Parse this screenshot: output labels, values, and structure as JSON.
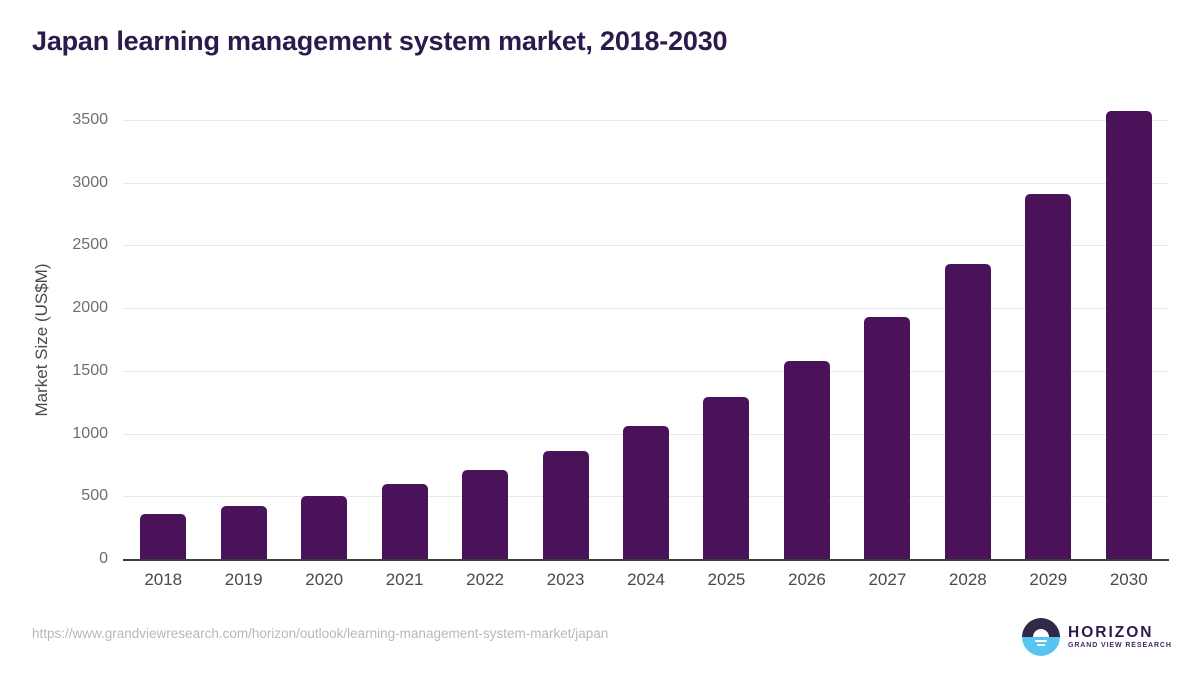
{
  "header": {
    "title": "Japan learning management system market, 2018-2030"
  },
  "chart_data": {
    "type": "bar",
    "title": "Japan learning management system market, 2018-2030",
    "categories": [
      "2018",
      "2019",
      "2020",
      "2021",
      "2022",
      "2023",
      "2024",
      "2025",
      "2026",
      "2027",
      "2028",
      "2029",
      "2030"
    ],
    "values": [
      355,
      420,
      500,
      600,
      712,
      865,
      1060,
      1295,
      1580,
      1930,
      2355,
      2910,
      3570
    ],
    "xlabel": "",
    "ylabel": "Market Size (US$M)",
    "ylim": [
      0,
      3570
    ],
    "yticks": [
      0,
      500,
      1000,
      1500,
      2000,
      2500,
      3000,
      3500
    ],
    "grid": "horizontal-only",
    "legend": "none",
    "bar_color": "#4a1259"
  },
  "footer": {
    "source_url": "https://www.grandviewresearch.com/horizon/outlook/learning-management-system-market/japan",
    "logo": {
      "name": "HORIZON",
      "tagline": "GRAND VIEW RESEARCH"
    }
  },
  "colors": {
    "bar": "#4a1259",
    "title_text": "#2c1a4d",
    "axis_label": "#4a4a4a",
    "tick_label": "#6e6e6e",
    "gridline": "#e8e8e8",
    "axis_line": "#3c3c3c",
    "url_text": "#b8b8b8",
    "logo_dark": "#322847",
    "logo_blue": "#57c5f0",
    "background": "#ffffff"
  }
}
